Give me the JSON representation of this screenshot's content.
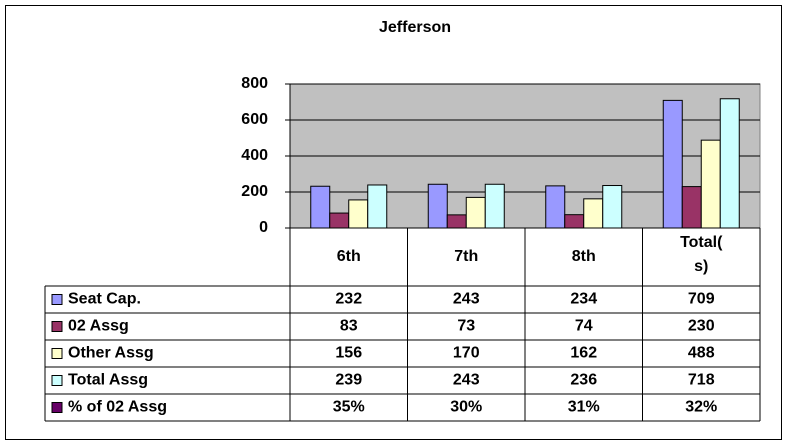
{
  "chart_data": {
    "type": "bar",
    "title": "Jefferson",
    "categories": [
      "6th",
      "7th",
      "8th",
      "Total(s)"
    ],
    "series": [
      {
        "name": "Seat Cap.",
        "color": "#9999ff",
        "values": [
          232,
          243,
          234,
          709
        ]
      },
      {
        "name": "02 Assg",
        "color": "#993366",
        "values": [
          83,
          73,
          74,
          230
        ]
      },
      {
        "name": "Other Assg",
        "color": "#ffffcc",
        "values": [
          156,
          170,
          162,
          488
        ]
      },
      {
        "name": "Total Assg",
        "color": "#ccffff",
        "values": [
          239,
          243,
          236,
          718
        ]
      },
      {
        "name": "% of 02 Assg",
        "color": "#660066",
        "values": [
          35,
          30,
          31,
          32
        ],
        "value_labels": [
          "35%",
          "30%",
          "31%",
          "32%"
        ],
        "table_only": true
      }
    ],
    "ylim": [
      0,
      800
    ],
    "yticks": [
      0,
      200,
      400,
      600,
      800
    ],
    "grid": true,
    "plot_color": "#c0c0c0"
  }
}
